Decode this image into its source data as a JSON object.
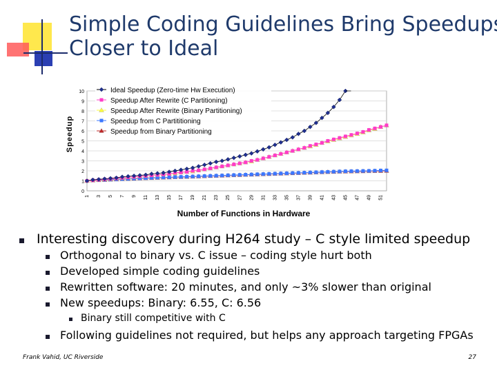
{
  "slide": {
    "title_line1": "Simple Coding Guidelines Bring Speedups",
    "title_line2": "Closer to Ideal",
    "footer_left": "Frank Vahid, UC Riverside",
    "page_number": "27",
    "colors": {
      "title": "#1f3a6b",
      "deco_yellow": "#ffe84d",
      "deco_red": "#ff5a5a",
      "deco_blue": "#2b3fb3"
    }
  },
  "bullets": {
    "main": "Interesting discovery during H264 study – C style limited speedup",
    "sub": [
      "Orthogonal to binary vs. C issue – coding style hurt both",
      "Developed simple coding guidelines",
      "Rewritten software: 20 minutes, and only ~3% slower than original",
      "New speedups: Binary: 6.55, C: 6.56"
    ],
    "subsub": "Binary still competitive with C",
    "last": "Following guidelines not required, but helps any approach targeting FPGAs"
  },
  "chart_data": {
    "type": "line",
    "xlabel": "Number of Functions in Hardware",
    "ylabel": "Speedup",
    "ylim": [
      0,
      10
    ],
    "xlim": [
      1,
      52
    ],
    "yticks": [
      "0",
      "1",
      "2",
      "3",
      "4",
      "5",
      "6",
      "7",
      "8",
      "9",
      "10"
    ],
    "xticks": [
      "1",
      "3",
      "5",
      "7",
      "9",
      "11",
      "13",
      "15",
      "17",
      "19",
      "21",
      "23",
      "25",
      "27",
      "29",
      "31",
      "33",
      "35",
      "37",
      "39",
      "41",
      "43",
      "45",
      "47",
      "49",
      "51"
    ],
    "legend_position": "top-left",
    "series": [
      {
        "name": "Ideal Speedup (Zero-time Hw Execution)",
        "color": "#1f2f8f",
        "marker": "diamond",
        "x": [
          1,
          2,
          3,
          4,
          5,
          6,
          7,
          8,
          9,
          10,
          11,
          12,
          13,
          14,
          15,
          16,
          17,
          18,
          19,
          20,
          21,
          22,
          23,
          24,
          25,
          26,
          27,
          28,
          29,
          30,
          31,
          32,
          33,
          34,
          35,
          36,
          37,
          38,
          39,
          40,
          41,
          42,
          43,
          44,
          45
        ],
        "values": [
          1.0,
          1.1,
          1.15,
          1.2,
          1.25,
          1.3,
          1.4,
          1.45,
          1.5,
          1.55,
          1.6,
          1.7,
          1.75,
          1.8,
          1.9,
          2.0,
          2.1,
          2.2,
          2.3,
          2.45,
          2.6,
          2.75,
          2.9,
          3.0,
          3.15,
          3.3,
          3.45,
          3.6,
          3.75,
          3.95,
          4.15,
          4.35,
          4.6,
          4.85,
          5.1,
          5.35,
          5.7,
          6.0,
          6.4,
          6.8,
          7.3,
          7.8,
          8.4,
          9.1,
          10.0
        ]
      },
      {
        "name": "Speedup After Rewrite (C Partitioning)",
        "color": "#ff3cc8",
        "marker": "square",
        "x": [
          1,
          2,
          3,
          4,
          5,
          6,
          7,
          8,
          9,
          10,
          11,
          12,
          13,
          14,
          15,
          16,
          17,
          18,
          19,
          20,
          21,
          22,
          23,
          24,
          25,
          26,
          27,
          28,
          29,
          30,
          31,
          32,
          33,
          34,
          35,
          36,
          37,
          38,
          39,
          40,
          41,
          42,
          43,
          44,
          45,
          46,
          47,
          48,
          49,
          50,
          51,
          52
        ],
        "values": [
          1.0,
          1.05,
          1.1,
          1.15,
          1.2,
          1.25,
          1.3,
          1.35,
          1.4,
          1.45,
          1.5,
          1.55,
          1.6,
          1.65,
          1.7,
          1.8,
          1.85,
          1.9,
          2.0,
          2.05,
          2.15,
          2.25,
          2.35,
          2.45,
          2.55,
          2.65,
          2.75,
          2.85,
          3.0,
          3.1,
          3.25,
          3.4,
          3.55,
          3.7,
          3.85,
          4.0,
          4.15,
          4.3,
          4.5,
          4.65,
          4.8,
          5.0,
          5.15,
          5.3,
          5.45,
          5.6,
          5.75,
          5.9,
          6.1,
          6.25,
          6.4,
          6.56
        ]
      },
      {
        "name": "Speedup After Rewrite (Binary Partitioning)",
        "color": "#ffff3c",
        "marker": "triangle",
        "x": [
          1,
          2,
          3,
          4,
          5,
          6,
          7,
          8,
          9,
          10,
          11,
          12,
          13,
          14,
          15,
          16,
          17,
          18,
          19,
          20,
          21,
          22,
          23,
          24,
          25,
          26,
          27,
          28,
          29,
          30,
          31,
          32,
          33,
          34,
          35,
          36,
          37,
          38,
          39,
          40,
          41,
          42,
          43,
          44,
          45,
          46,
          47,
          48,
          49,
          50,
          51,
          52
        ],
        "values": [
          1.0,
          1.05,
          1.1,
          1.15,
          1.2,
          1.25,
          1.3,
          1.35,
          1.4,
          1.45,
          1.5,
          1.55,
          1.6,
          1.65,
          1.7,
          1.75,
          1.85,
          1.9,
          1.95,
          2.05,
          2.15,
          2.25,
          2.35,
          2.45,
          2.55,
          2.65,
          2.75,
          2.85,
          2.95,
          3.1,
          3.25,
          3.4,
          3.55,
          3.7,
          3.85,
          4.0,
          4.15,
          4.3,
          4.45,
          4.6,
          4.8,
          4.95,
          5.1,
          5.25,
          5.4,
          5.55,
          5.7,
          5.85,
          6.05,
          6.2,
          6.4,
          6.55
        ]
      },
      {
        "name": "Speedup from C Partititioning",
        "color": "#3c78ff",
        "marker": "square",
        "x": [
          1,
          2,
          3,
          4,
          5,
          6,
          7,
          8,
          9,
          10,
          11,
          12,
          13,
          14,
          15,
          16,
          17,
          18,
          19,
          20,
          21,
          22,
          23,
          24,
          25,
          26,
          27,
          28,
          29,
          30,
          31,
          32,
          33,
          34,
          35,
          36,
          37,
          38,
          39,
          40,
          41,
          42,
          43,
          44,
          45,
          46,
          47,
          48,
          49,
          50,
          51,
          52
        ],
        "values": [
          1.0,
          1.05,
          1.08,
          1.1,
          1.13,
          1.15,
          1.18,
          1.2,
          1.22,
          1.25,
          1.27,
          1.3,
          1.32,
          1.34,
          1.36,
          1.38,
          1.4,
          1.42,
          1.44,
          1.46,
          1.48,
          1.5,
          1.52,
          1.54,
          1.56,
          1.58,
          1.6,
          1.62,
          1.64,
          1.66,
          1.68,
          1.7,
          1.72,
          1.74,
          1.76,
          1.78,
          1.8,
          1.82,
          1.84,
          1.86,
          1.88,
          1.9,
          1.92,
          1.94,
          1.96,
          1.97,
          1.98,
          1.99,
          2.0,
          2.02,
          2.04,
          2.05
        ]
      },
      {
        "name": "Speedup from Binary Partitioning",
        "color": "#c02828",
        "marker": "triangle",
        "x": [
          1,
          2,
          3,
          4,
          5,
          6,
          7,
          8,
          9,
          10,
          11,
          12,
          13,
          14,
          15,
          16,
          17,
          18,
          19,
          20,
          21,
          22,
          23,
          24,
          25,
          26,
          27,
          28,
          29,
          30,
          31,
          32,
          33,
          34,
          35,
          36,
          37,
          38,
          39,
          40,
          41,
          42,
          43,
          44,
          45,
          46,
          47,
          48,
          49,
          50,
          51,
          52
        ],
        "values": [
          1.0,
          1.04,
          1.07,
          1.09,
          1.12,
          1.14,
          1.17,
          1.19,
          1.21,
          1.24,
          1.26,
          1.28,
          1.3,
          1.32,
          1.34,
          1.36,
          1.38,
          1.4,
          1.42,
          1.44,
          1.46,
          1.48,
          1.5,
          1.52,
          1.54,
          1.56,
          1.58,
          1.6,
          1.62,
          1.64,
          1.66,
          1.68,
          1.7,
          1.72,
          1.74,
          1.76,
          1.78,
          1.8,
          1.82,
          1.84,
          1.86,
          1.88,
          1.9,
          1.92,
          1.93,
          1.94,
          1.95,
          1.96,
          1.97,
          1.98,
          1.99,
          2.0
        ]
      }
    ]
  }
}
